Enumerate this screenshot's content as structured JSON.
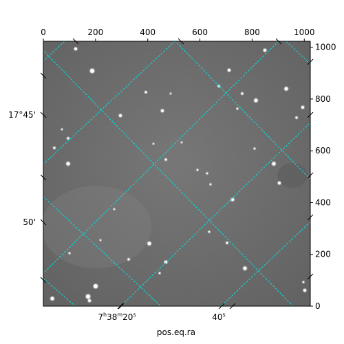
{
  "chart_data": {
    "type": "image",
    "xlabel": "pos.eq.ra",
    "pixel_axes": {
      "x": {
        "range": [
          0,
          1023
        ],
        "ticks": [
          0,
          200,
          400,
          600,
          800,
          1000
        ]
      },
      "y": {
        "range": [
          0,
          1023
        ],
        "ticks": [
          0,
          200,
          400,
          600,
          800,
          1000
        ]
      }
    },
    "world_axes": {
      "ra_tick_labels": [
        {
          "hours": "7",
          "minutes": "38",
          "seconds": "20",
          "text_h": "7",
          "sup_h": "h",
          "text_m": "38",
          "sup_m": "m",
          "text_s": "20",
          "sup_s": "s"
        },
        {
          "text_s": "40",
          "sup_s": "s"
        }
      ],
      "dec_tick_labels": [
        "17°45'",
        "50'"
      ]
    },
    "grid": true,
    "grid_color": "#00e5e5",
    "frame_color": "#000000",
    "image_colormap": "gray"
  }
}
